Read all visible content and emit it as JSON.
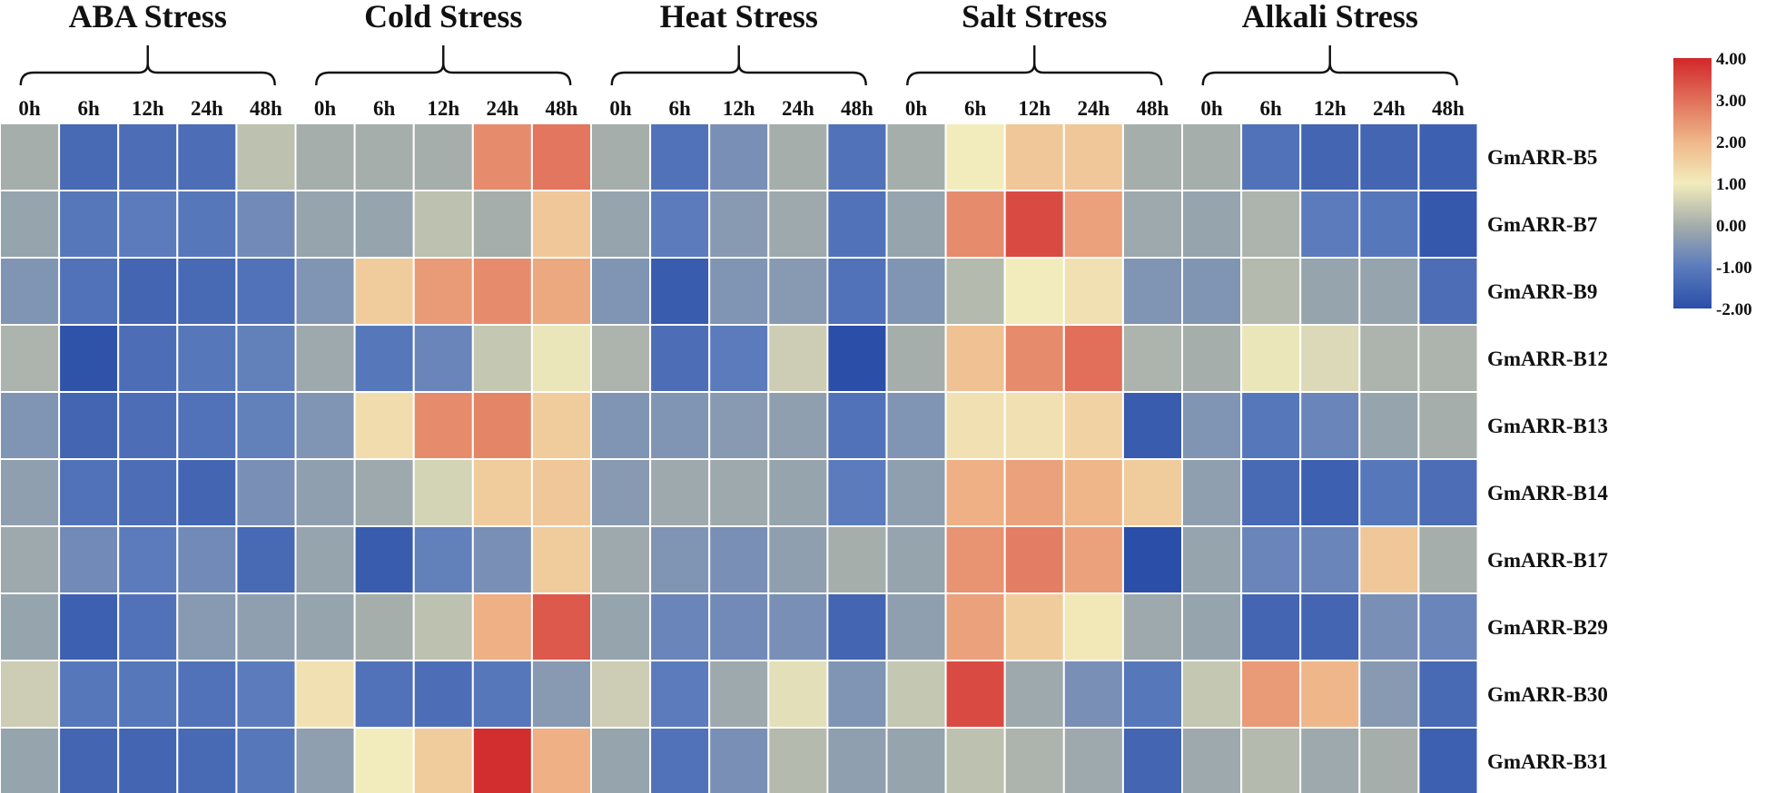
{
  "chart_data": {
    "type": "heatmap",
    "title": "",
    "groups": [
      {
        "name": "ABA Stress",
        "columns": [
          "0h",
          "6h",
          "12h",
          "24h",
          "48h"
        ]
      },
      {
        "name": "Cold Stress",
        "columns": [
          "0h",
          "6h",
          "12h",
          "24h",
          "48h"
        ]
      },
      {
        "name": "Heat Stress",
        "columns": [
          "0h",
          "6h",
          "12h",
          "24h",
          "48h"
        ]
      },
      {
        "name": "Salt Stress",
        "columns": [
          "0h",
          "6h",
          "12h",
          "24h",
          "48h"
        ]
      },
      {
        "name": "Alkali Stress",
        "columns": [
          "0h",
          "6h",
          "12h",
          "24h",
          "48h"
        ]
      }
    ],
    "rows": [
      "GmARR-B5",
      "GmARR-B7",
      "GmARR-B9",
      "GmARR-B12",
      "GmARR-B13",
      "GmARR-B14",
      "GmARR-B17",
      "GmARR-B29",
      "GmARR-B30",
      "GmARR-B31"
    ],
    "values": [
      [
        0,
        -1.4,
        -1.3,
        -1.3,
        0.3,
        0,
        0,
        0,
        2.6,
        2.9,
        0,
        -1.2,
        -0.6,
        0,
        -1.2,
        0,
        1.0,
        1.7,
        1.7,
        0,
        0,
        -1.2,
        -1.5,
        -1.5,
        -1.6
      ],
      [
        -0.2,
        -1.1,
        -1.0,
        -1.1,
        -0.7,
        -0.2,
        -0.2,
        0.3,
        0,
        1.7,
        -0.2,
        -1.0,
        -0.4,
        -0.1,
        -1.2,
        -0.2,
        2.6,
        3.5,
        2.3,
        -0.1,
        -0.2,
        0.1,
        -1.0,
        -1.1,
        -1.8
      ],
      [
        -0.5,
        -1.2,
        -1.5,
        -1.4,
        -1.2,
        -0.5,
        1.6,
        2.4,
        2.6,
        2.2,
        -0.5,
        -1.7,
        -0.5,
        -0.4,
        -1.2,
        -0.5,
        0.2,
        1.0,
        1.2,
        -0.5,
        -0.5,
        0.2,
        -0.2,
        -0.2,
        -1.3
      ],
      [
        0.1,
        -1.9,
        -1.3,
        -1.1,
        -0.9,
        -0.1,
        -1.1,
        -0.8,
        0.4,
        0.9,
        0.1,
        -1.3,
        -1.0,
        0.5,
        -2.0,
        0,
        1.8,
        2.6,
        3.0,
        0.1,
        0,
        0.9,
        0.7,
        0.1,
        0.1
      ],
      [
        -0.5,
        -1.5,
        -1.3,
        -1.2,
        -0.9,
        -0.5,
        1.3,
        2.6,
        2.7,
        1.6,
        -0.5,
        -0.5,
        -0.4,
        -0.3,
        -1.2,
        -0.5,
        1.2,
        1.2,
        1.5,
        -1.7,
        -0.5,
        -1.1,
        -0.8,
        -0.2,
        0
      ],
      [
        -0.3,
        -1.2,
        -1.3,
        -1.5,
        -0.6,
        -0.3,
        -0.1,
        0.6,
        1.6,
        1.7,
        -0.4,
        -0.1,
        -0.1,
        -0.2,
        -1.0,
        -0.3,
        2.1,
        2.3,
        2.0,
        1.6,
        -0.3,
        -1.4,
        -1.6,
        -1.1,
        -1.3
      ],
      [
        -0.1,
        -0.7,
        -1.0,
        -0.7,
        -1.4,
        -0.2,
        -1.7,
        -0.9,
        -0.6,
        1.6,
        -0.1,
        -0.5,
        -0.6,
        -0.3,
        0,
        -0.2,
        2.5,
        2.8,
        2.3,
        -2.0,
        -0.2,
        -0.8,
        -0.8,
        1.7,
        0
      ],
      [
        -0.2,
        -1.6,
        -1.2,
        -0.4,
        -0.3,
        -0.2,
        0,
        0.3,
        2.1,
        3.3,
        -0.2,
        -0.8,
        -0.7,
        -0.6,
        -1.5,
        -0.3,
        2.3,
        1.6,
        1.1,
        -0.1,
        -0.2,
        -1.5,
        -1.5,
        -0.6,
        -0.8
      ],
      [
        0.5,
        -1.1,
        -1.1,
        -1.2,
        -1.0,
        1.2,
        -1.2,
        -1.3,
        -1.1,
        -0.4,
        0.5,
        -1.0,
        -0.1,
        0.8,
        -0.5,
        0.4,
        3.5,
        -0.1,
        -0.6,
        -1.1,
        0.4,
        2.4,
        2.0,
        -0.4,
        -1.4
      ],
      [
        -0.2,
        -1.5,
        -1.5,
        -1.4,
        -1.1,
        -0.3,
        1.0,
        1.6,
        3.9,
        2.1,
        -0.2,
        -1.2,
        -0.6,
        0.2,
        -0.3,
        -0.2,
        0.3,
        0.1,
        -0.1,
        -1.5,
        -0.1,
        0.2,
        -0.1,
        0,
        -1.6
      ]
    ],
    "legend": {
      "ticks": [
        "4.00",
        "3.00",
        "2.00",
        "1.00",
        "0.00",
        "-1.00",
        "-2.00"
      ],
      "range": [
        -2,
        4
      ],
      "colors": [
        "#2b4ea8",
        "#5b7bbc",
        "#a5aeab",
        "#f2ecbc",
        "#efb789",
        "#d2272a"
      ],
      "stops": [
        -2,
        -1,
        0,
        1,
        2,
        4
      ]
    }
  }
}
